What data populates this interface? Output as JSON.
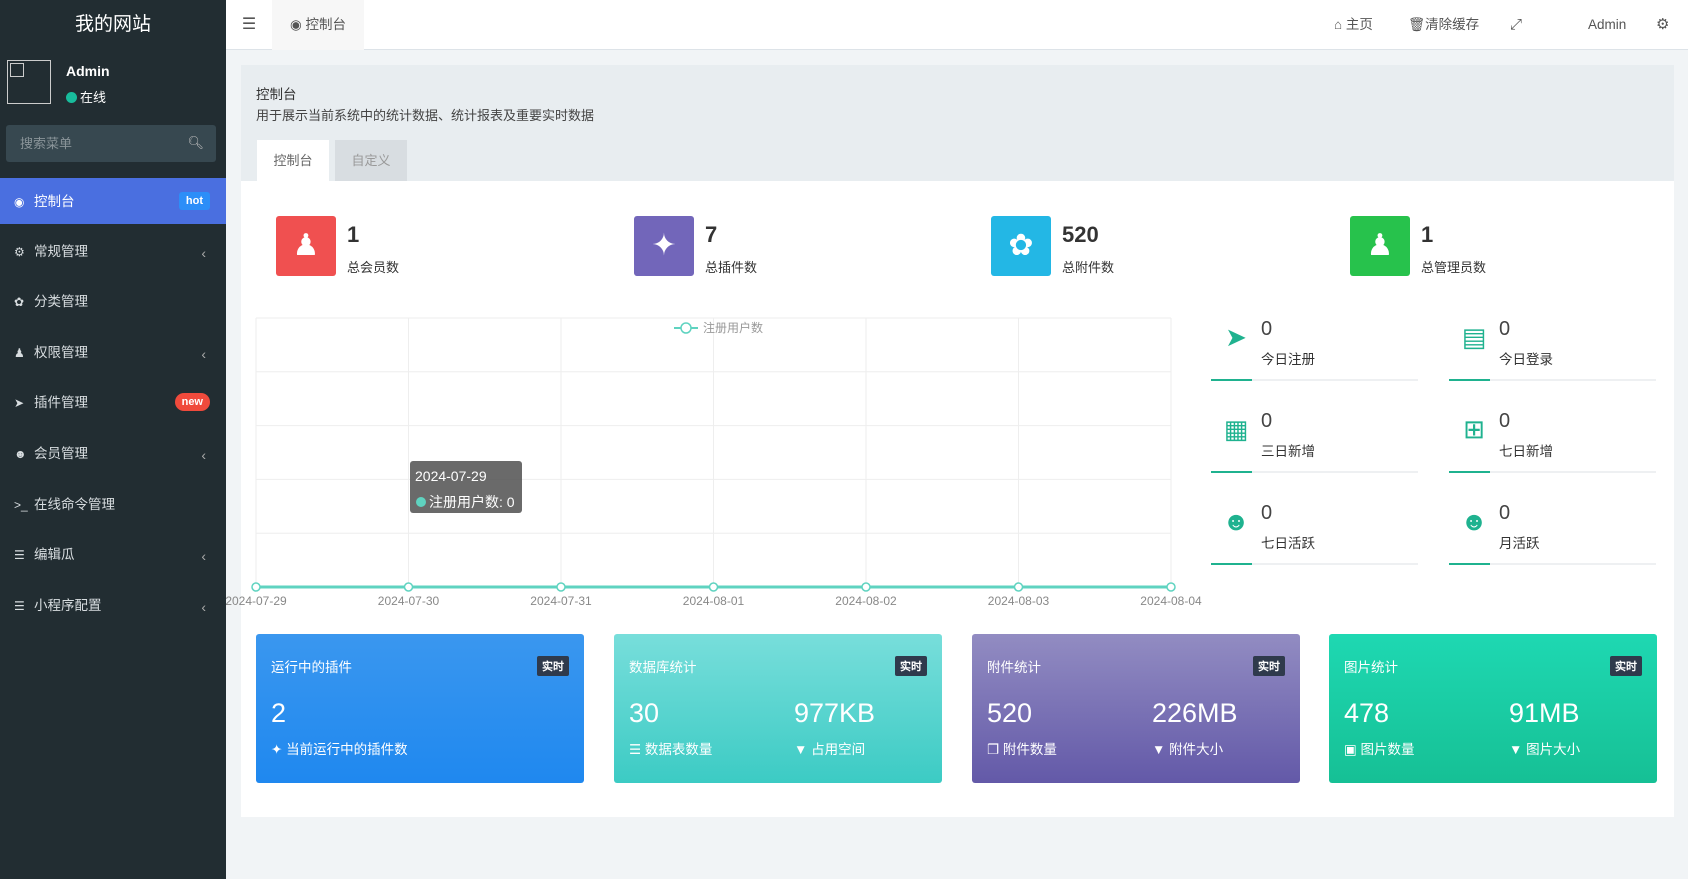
{
  "sidebar": {
    "logo": "我的网站",
    "user": {
      "name": "Admin",
      "status": "在线"
    },
    "search_placeholder": "搜索菜单",
    "items": [
      {
        "label": "控制台",
        "icon": "dashboard-icon",
        "badge": "hot",
        "badge_color": "#2c8ef8",
        "active": true
      },
      {
        "label": "常规管理",
        "icon": "cogs-icon",
        "arrow": true
      },
      {
        "label": "分类管理",
        "icon": "leaf-icon"
      },
      {
        "label": "权限管理",
        "icon": "group-icon",
        "arrow": true
      },
      {
        "label": "插件管理",
        "icon": "rocket-icon",
        "badge": "new",
        "badge_color": "#f04a3c"
      },
      {
        "label": "会员管理",
        "icon": "user-circle-icon",
        "arrow": true
      },
      {
        "label": "在线命令管理",
        "icon": "terminal-icon"
      },
      {
        "label": "编辑瓜",
        "icon": "list-icon",
        "arrow": true
      },
      {
        "label": "小程序配置",
        "icon": "list-icon",
        "arrow": true
      }
    ]
  },
  "topbar": {
    "tab": "控制台",
    "home": "主页",
    "clear_cache": "清除缓存",
    "user": "Admin"
  },
  "panel": {
    "title": "控制台",
    "description": "用于展示当前系统中的统计数据、统计报表及重要实时数据",
    "tabs": [
      "控制台",
      "自定义"
    ]
  },
  "stats": [
    {
      "value": "1",
      "label": "总会员数",
      "color": "#f05050",
      "icon": "users-icon"
    },
    {
      "value": "7",
      "label": "总插件数",
      "color": "#7266ba",
      "icon": "magic-icon"
    },
    {
      "value": "520",
      "label": "总附件数",
      "color": "#23b7e5",
      "icon": "leaf-icon"
    },
    {
      "value": "1",
      "label": "总管理员数",
      "color": "#27c24c",
      "icon": "user-icon"
    }
  ],
  "side_stats": [
    {
      "value": "0",
      "label": "今日注册",
      "icon": "rocket-icon"
    },
    {
      "value": "0",
      "label": "今日登录",
      "icon": "id-card-icon"
    },
    {
      "value": "0",
      "label": "三日新增",
      "icon": "calendar-icon"
    },
    {
      "value": "0",
      "label": "七日新增",
      "icon": "calendar-plus-icon"
    },
    {
      "value": "0",
      "label": "七日活跃",
      "icon": "user-circle-icon"
    },
    {
      "value": "0",
      "label": "月活跃",
      "icon": "user-circle-icon"
    }
  ],
  "cards": [
    {
      "title": "运行中的插件",
      "tag": "实时",
      "v1": "2",
      "l1": "当前运行中的插件数",
      "i1": "magic-icon",
      "grad": [
        "#3a97ef",
        "#1f88ef"
      ]
    },
    {
      "title": "数据库统计",
      "tag": "实时",
      "v1": "30",
      "l1": "数据表数量",
      "i1": "database-icon",
      "v2": "977KB",
      "l2": "占用空间",
      "i2": "filter-icon",
      "grad": [
        "#78dedb",
        "#3ccbc4"
      ]
    },
    {
      "title": "附件统计",
      "tag": "实时",
      "v1": "520",
      "l1": "附件数量",
      "i1": "files-icon",
      "v2": "226MB",
      "l2": "附件大小",
      "i2": "filter-icon",
      "grad": [
        "#928cc2",
        "#6359a8"
      ]
    },
    {
      "title": "图片统计",
      "tag": "实时",
      "v1": "478",
      "l1": "图片数量",
      "i1": "image-icon",
      "v2": "91MB",
      "l2": "图片大小",
      "i2": "filter-icon",
      "grad": [
        "#1ed8b2",
        "#16c095"
      ]
    }
  ],
  "chart_data": {
    "type": "line",
    "x": [
      "2024-07-29",
      "2024-07-30",
      "2024-07-31",
      "2024-08-01",
      "2024-08-02",
      "2024-08-03",
      "2024-08-04"
    ],
    "series": [
      {
        "name": "注册用户数",
        "values": [
          0,
          0,
          0,
          0,
          0,
          0,
          0
        ],
        "color": "#5fd3c0"
      }
    ],
    "legend": "top-center",
    "grid": true,
    "tooltip": {
      "title": "2024-07-29",
      "text": "注册用户数: 0"
    }
  }
}
